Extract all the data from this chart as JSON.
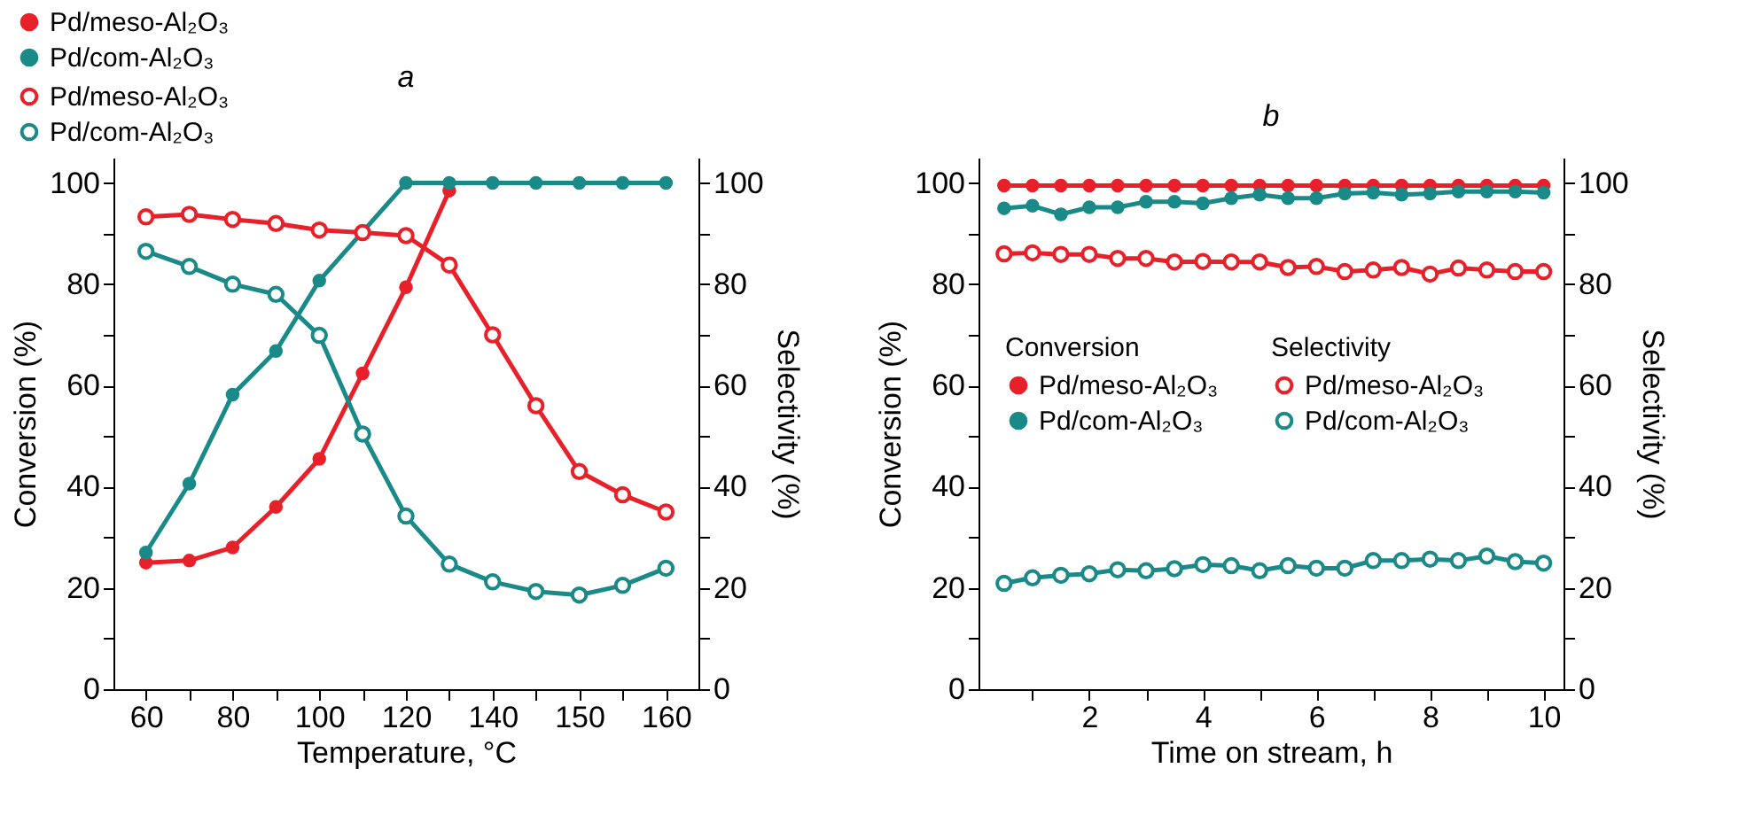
{
  "chart_data": [
    {
      "type": "line",
      "title": "a",
      "xlabel": "Temperature, °C",
      "ylabel": "Conversion (%)",
      "y2label": "Selectivity (%)",
      "categories": [
        "60",
        null,
        "80",
        null,
        "100",
        null,
        "120",
        null,
        "140",
        null,
        "150",
        null,
        "160"
      ],
      "ylim": [
        0,
        105
      ],
      "yticks": [
        0,
        {
          "value": 10,
          "label": null
        },
        20,
        {
          "value": 30,
          "label": null
        },
        40,
        {
          "value": 50,
          "label": null
        },
        60,
        {
          "value": 70,
          "label": null
        },
        80,
        {
          "value": 90,
          "label": null
        },
        100
      ],
      "y2lim": [
        0,
        105
      ],
      "y2ticks": [
        0,
        {
          "value": 10,
          "label": null
        },
        20,
        {
          "value": 30,
          "label": null
        },
        40,
        {
          "value": 50,
          "label": null
        },
        60,
        {
          "value": 70,
          "label": null
        },
        80,
        {
          "value": 90,
          "label": null
        },
        100
      ],
      "marker": "circle",
      "line_style": "solid",
      "grid": false,
      "legend": "top left",
      "series": [
        {
          "name": "Pd/meso-Al₂O₃",
          "color": "#e8202a",
          "values": [
            25,
            25.4,
            28,
            36,
            45.5,
            62.4,
            79.4,
            98.5,
            null,
            null,
            null,
            null,
            null
          ]
        },
        {
          "name": "Pd/com-Al₂O₃",
          "color": "#1a8a88",
          "values": [
            27,
            40.6,
            58.2,
            66.8,
            80.7,
            null,
            100,
            100,
            100,
            100,
            100,
            100,
            100
          ]
        },
        {
          "name": "Pd/meso-Al₂O₃",
          "color": "#e8202a",
          "axis": "y2",
          "values": [
            93.3,
            93.8,
            92.8,
            92,
            90.7,
            90.2,
            89.6,
            83.8,
            70,
            56,
            43,
            38.4,
            35
          ]
        },
        {
          "name": "Pd/com-Al₂O₃",
          "color": "#1a8a88",
          "axis": "y2",
          "values": [
            86.5,
            83.5,
            80,
            78,
            69.9,
            50.4,
            34.2,
            24.7,
            21.2,
            19.3,
            18.6,
            20.5,
            23.9
          ]
        }
      ]
    },
    {
      "type": "line",
      "title": "b",
      "xlabel": "Time on stream, h",
      "ylabel": "Conversion (%)",
      "y2label": "Selectivity (%)",
      "legend_title": [
        "Conversion",
        "Selectivity"
      ],
      "x": [
        0.5,
        1,
        1.5,
        2,
        2.5,
        3,
        3.5,
        4,
        4.5,
        5,
        5.5,
        6,
        6.5,
        7,
        7.5,
        8,
        8.5,
        9,
        9.5,
        10
      ],
      "xlim": [
        0.05,
        10.35
      ],
      "xticks": [
        {
          "value": 1,
          "label": null
        },
        2,
        {
          "value": 3,
          "label": null
        },
        4,
        {
          "value": 5,
          "label": null
        },
        6,
        {
          "value": 7,
          "label": null
        },
        8,
        {
          "value": 9,
          "label": null
        },
        10
      ],
      "ylim": [
        0,
        105
      ],
      "yticks": [
        0,
        {
          "value": 10,
          "label": null
        },
        20,
        {
          "value": 30,
          "label": null
        },
        40,
        {
          "value": 50,
          "label": null
        },
        60,
        {
          "value": 70,
          "label": null
        },
        80,
        {
          "value": 90,
          "label": null
        },
        100
      ],
      "y2lim": [
        0,
        105
      ],
      "y2ticks": [
        0,
        {
          "value": 10,
          "label": null
        },
        20,
        {
          "value": 30,
          "label": null
        },
        40,
        {
          "value": 50,
          "label": null
        },
        60,
        {
          "value": 70,
          "label": null
        },
        80,
        {
          "value": 90,
          "label": null
        },
        100
      ],
      "marker": "circle",
      "line_style": "solid",
      "grid": false,
      "legend": "center",
      "series": [
        {
          "name": "Pd/meso-Al₂O₃",
          "color": "#e8202a",
          "values": [
            99.5,
            99.5,
            99.5,
            99.5,
            99.5,
            99.5,
            99.5,
            99.5,
            99.5,
            99.5,
            99.5,
            99.5,
            99.5,
            99.5,
            99.5,
            99.5,
            99.5,
            99.5,
            99.5,
            99.5
          ]
        },
        {
          "name": "Pd/com-Al₂O₃",
          "color": "#1a8a88",
          "values": [
            95,
            95.5,
            93.8,
            95.2,
            95.2,
            96.3,
            96.3,
            96,
            97,
            97.7,
            97,
            97,
            97.9,
            98.1,
            97.7,
            97.9,
            98.3,
            98.3,
            98.3,
            98.1
          ]
        },
        {
          "name": "Pd/meso-Al₂O₃",
          "color": "#e8202a",
          "axis": "y2",
          "values": [
            86,
            86.2,
            85.9,
            85.9,
            85.1,
            85.1,
            84.4,
            84.5,
            84.4,
            84.4,
            83.3,
            83.5,
            82.5,
            82.8,
            83.3,
            82,
            83.2,
            82.8,
            82.5,
            82.5
          ]
        },
        {
          "name": "Pd/com-Al₂O₃",
          "color": "#1a8a88",
          "axis": "y2",
          "values": [
            20.9,
            22,
            22.5,
            22.8,
            23.6,
            23.4,
            23.8,
            24.6,
            24.4,
            23.4,
            24.4,
            23.9,
            23.9,
            25.4,
            25.4,
            25.7,
            25.4,
            26.3,
            25.2,
            24.9
          ]
        }
      ]
    }
  ]
}
